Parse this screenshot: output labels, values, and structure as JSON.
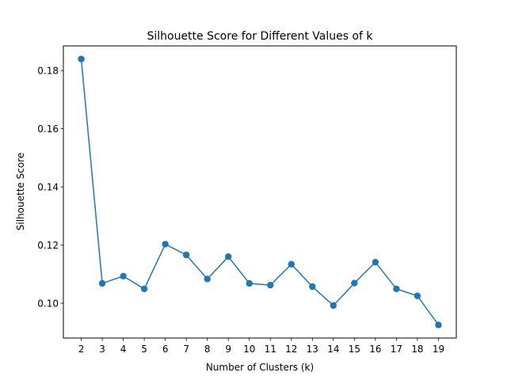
{
  "chart_data": {
    "type": "line",
    "title": "Silhouette Score for Different Values of k",
    "xlabel": "Number of Clusters (k)",
    "ylabel": "Silhouette Score",
    "x": [
      2,
      3,
      4,
      5,
      6,
      7,
      8,
      9,
      10,
      11,
      12,
      13,
      14,
      15,
      16,
      17,
      18,
      19
    ],
    "series": [
      {
        "values": [
          0.184,
          0.1068,
          0.1093,
          0.1049,
          0.1203,
          0.1166,
          0.1083,
          0.116,
          0.1068,
          0.1062,
          0.1134,
          0.1057,
          0.0992,
          0.1069,
          0.1141,
          0.1049,
          0.1025,
          0.0925
        ],
        "color": "#1f77b4",
        "marker": "circle"
      }
    ],
    "xlim": [
      1.15,
      19.85
    ],
    "ylim": [
      0.088,
      0.1885
    ],
    "yticks": [
      0.1,
      0.12,
      0.14,
      0.16,
      0.18
    ],
    "ytick_labels": [
      "0.10",
      "0.12",
      "0.14",
      "0.16",
      "0.18"
    ],
    "xticks": [
      2,
      3,
      4,
      5,
      6,
      7,
      8,
      9,
      10,
      11,
      12,
      13,
      14,
      15,
      16,
      17,
      18,
      19
    ],
    "xtick_labels": [
      "2",
      "3",
      "4",
      "5",
      "6",
      "7",
      "8",
      "9",
      "10",
      "11",
      "12",
      "13",
      "14",
      "15",
      "16",
      "17",
      "18",
      "19"
    ],
    "grid": false,
    "legend": "none"
  }
}
